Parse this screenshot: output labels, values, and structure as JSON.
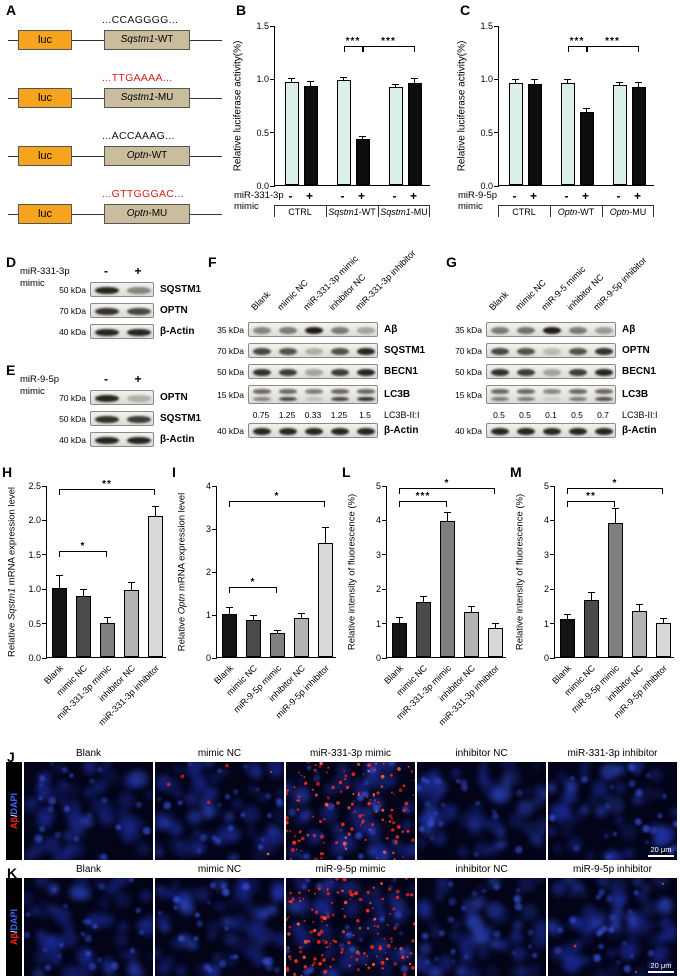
{
  "panelA": {
    "label": "A",
    "luc": "luc",
    "constructs": [
      {
        "seq": "...CCAGGGG...",
        "red": false,
        "gene": "Sqstm1",
        "suffix": "-WT"
      },
      {
        "seq": "...TTGAAAA...",
        "red": true,
        "gene": "Sqstm1",
        "suffix": "-MU"
      },
      {
        "seq": "...ACCAAAG...",
        "red": false,
        "gene": "Optn",
        "suffix": "-WT"
      },
      {
        "seq": "...GTTGGGAC...",
        "red": true,
        "gene": "Optn",
        "suffix": "-MU"
      }
    ]
  },
  "panelB": {
    "label": "B",
    "mimic_line1": "miR-331-3p",
    "mimic_line2": "mimic",
    "signs": [
      "-",
      "+",
      "-",
      "+",
      "-",
      "+"
    ],
    "groups": [
      {
        "italic": "",
        "rest": "CTRL"
      },
      {
        "italic": "Sqstm1",
        "rest": "-WT"
      },
      {
        "italic": "Sqstm1",
        "rest": "-MU"
      }
    ],
    "chart": {
      "type": "bar",
      "ylabel": "Relative luciferase activity(%)",
      "ylim": [
        0,
        1.5
      ],
      "yticks": [
        0,
        0.5,
        1,
        1.5
      ],
      "ytick_labels": [
        "0.0",
        "0.5",
        "1.0",
        "1.5"
      ],
      "values": [
        0.97,
        0.93,
        0.98,
        0.43,
        0.92,
        0.96
      ],
      "errors": [
        0.02,
        0.04,
        0.02,
        0.02,
        0.02,
        0.03
      ],
      "colors": [
        "#d9efe7",
        "#0d0d0d",
        "#d9efe7",
        "#0d0d0d",
        "#d9efe7",
        "#0d0d0d"
      ],
      "sig": [
        {
          "i1": 2,
          "i2": 3,
          "label": "***",
          "y": 1.25
        },
        {
          "i1": 3,
          "i2": 5,
          "label": "***",
          "y": 1.25
        }
      ]
    }
  },
  "panelC": {
    "label": "C",
    "mimic_line1": "miR-9-5p",
    "mimic_line2": "mimic",
    "signs": [
      "-",
      "+",
      "-",
      "+",
      "-",
      "+"
    ],
    "groups": [
      {
        "italic": "",
        "rest": "CTRL"
      },
      {
        "italic": "Optn",
        "rest": "-WT"
      },
      {
        "italic": "Optn",
        "rest": "-MU"
      }
    ],
    "chart": {
      "type": "bar",
      "ylabel": "Relative luciferase activity(%)",
      "ylim": [
        0,
        1.5
      ],
      "yticks": [
        0,
        0.5,
        1,
        1.5
      ],
      "ytick_labels": [
        "0.0",
        "0.5",
        "1.0",
        "1.5"
      ],
      "values": [
        0.96,
        0.95,
        0.96,
        0.68,
        0.94,
        0.92
      ],
      "errors": [
        0.02,
        0.03,
        0.02,
        0.03,
        0.02,
        0.04
      ],
      "colors": [
        "#d9efe7",
        "#0d0d0d",
        "#d9efe7",
        "#0d0d0d",
        "#d9efe7",
        "#0d0d0d"
      ],
      "sig": [
        {
          "i1": 2,
          "i2": 3,
          "label": "***",
          "y": 1.25
        },
        {
          "i1": 3,
          "i2": 5,
          "label": "***",
          "y": 1.25
        }
      ]
    }
  },
  "panelD": {
    "label": "D",
    "title_line1": "miR-331-3p",
    "title_line2": "mimic",
    "signs": [
      "-",
      "+"
    ],
    "rows": [
      {
        "marker": "50 kDa",
        "protein": "SQSTM1",
        "bands": [
          [
            0.9,
            0.45
          ]
        ]
      },
      {
        "marker": "70 kDa",
        "protein": "OPTN",
        "bands": [
          [
            0.85,
            0.75
          ]
        ]
      },
      {
        "marker": "40 kDa",
        "protein": "β-Actin",
        "bands": [
          [
            0.9,
            0.9
          ]
        ]
      }
    ]
  },
  "panelE": {
    "label": "E",
    "title_line1": "miR-9-5p",
    "title_line2": "mimic",
    "signs": [
      "-",
      "+"
    ],
    "rows": [
      {
        "marker": "70 kDa",
        "protein": "OPTN",
        "bands": [
          [
            0.9,
            0.25
          ]
        ]
      },
      {
        "marker": "50 kDa",
        "protein": "SQSTM1",
        "bands": [
          [
            0.85,
            0.8
          ]
        ]
      },
      {
        "marker": "40 kDa",
        "protein": "β-Actin",
        "bands": [
          [
            0.9,
            0.9
          ]
        ]
      }
    ]
  },
  "panelF": {
    "label": "F",
    "lanes": [
      "Blank",
      "mimic NC",
      "miR-331-3p mimic",
      "inhibitor NC",
      "miR-331-3p inhibitor"
    ],
    "rows": [
      {
        "marker": "35 kDa",
        "protein": "Aβ",
        "bands": [
          [
            0.45,
            0.5,
            0.95,
            0.5,
            0.3
          ]
        ]
      },
      {
        "marker": "70 kDa",
        "protein": "SQSTM1",
        "bands": [
          [
            0.75,
            0.7,
            0.25,
            0.7,
            0.9
          ]
        ]
      },
      {
        "marker": "50 kDa",
        "protein": "BECN1",
        "bands": [
          [
            0.85,
            0.8,
            0.3,
            0.8,
            0.9
          ]
        ]
      },
      {
        "marker": "15 kDa",
        "protein": "LC3B",
        "bands": [
          [
            0.6,
            0.6,
            0.5,
            0.6,
            0.6
          ],
          [
            0.45,
            0.75,
            0.15,
            0.75,
            0.85
          ]
        ]
      },
      {
        "ratio_label": "LC3B-II:I",
        "ratios": [
          "0.75",
          "1.25",
          "0.33",
          "1.25",
          "1.5"
        ]
      },
      {
        "marker": "40 kDa",
        "protein": "β-Actin",
        "bands": [
          [
            0.9,
            0.9,
            0.9,
            0.9,
            0.9
          ]
        ]
      }
    ]
  },
  "panelG": {
    "label": "G",
    "lanes": [
      "Blank",
      "mimic NC",
      "miR-9-5 mimic",
      "inhibitor NC",
      "miR-9-5p inhibitor"
    ],
    "rows": [
      {
        "marker": "35 kDa",
        "protein": "Aβ",
        "bands": [
          [
            0.5,
            0.55,
            0.95,
            0.5,
            0.35
          ]
        ]
      },
      {
        "marker": "70 kDa",
        "protein": "OPTN",
        "bands": [
          [
            0.75,
            0.7,
            0.2,
            0.7,
            0.85
          ]
        ]
      },
      {
        "marker": "50 kDa",
        "protein": "BECN1",
        "bands": [
          [
            0.85,
            0.8,
            0.3,
            0.8,
            0.9
          ]
        ]
      },
      {
        "marker": "15 kDa",
        "protein": "LC3B",
        "bands": [
          [
            0.6,
            0.6,
            0.45,
            0.6,
            0.6
          ],
          [
            0.5,
            0.5,
            0.1,
            0.5,
            0.7
          ]
        ]
      },
      {
        "ratio_label": "LC3B-II:I",
        "ratios": [
          "0.5",
          "0.5",
          "0.1",
          "0.5",
          "0.7"
        ]
      },
      {
        "marker": "40 kDa",
        "protein": "β-Actin",
        "bands": [
          [
            0.9,
            0.9,
            0.9,
            0.9,
            0.9
          ]
        ]
      }
    ]
  },
  "panelH": {
    "label": "H",
    "chart": {
      "type": "bar",
      "ylabel_pre": "Relative ",
      "ylabel_italic": "Sqstm1",
      "ylabel_post": " mRNA expression level",
      "ylim": [
        0,
        2.5
      ],
      "yticks": [
        0,
        0.5,
        1,
        1.5,
        2,
        2.5
      ],
      "ytick_labels": [
        "0.0",
        "0.5",
        "1.0",
        "1.5",
        "2.0",
        "2.5"
      ],
      "categories": [
        "Blank",
        "mimic NC",
        "miR-331-3p mimic",
        "inhibitor NC",
        "miR-331-3p inhibitor"
      ],
      "values": [
        1.0,
        0.88,
        0.5,
        0.98,
        2.05
      ],
      "errors": [
        0.18,
        0.1,
        0.06,
        0.1,
        0.13
      ],
      "colors": [
        "#141414",
        "#4a4a4a",
        "#7f7f7f",
        "#b3b3b3",
        "#d9d9d9"
      ],
      "sig": [
        {
          "i1": 0,
          "i2": 2,
          "label": "*",
          "y": 1.45
        },
        {
          "i1": 0,
          "i2": 4,
          "label": "**",
          "y": 2.35
        }
      ]
    }
  },
  "panelI": {
    "label": "I",
    "chart": {
      "type": "bar",
      "ylabel_pre": "Relative ",
      "ylabel_italic": "Optn",
      "ylabel_post": " mRNA expression level",
      "ylim": [
        0,
        4
      ],
      "yticks": [
        0,
        1,
        2,
        3,
        4
      ],
      "ytick_labels": [
        "0",
        "1",
        "2",
        "3",
        "4"
      ],
      "categories": [
        "Blank",
        "mimic NC",
        "miR-9-5p mimic",
        "inhibitor NC",
        "miR-9-5p inhibitor"
      ],
      "values": [
        1.0,
        0.85,
        0.55,
        0.9,
        2.65
      ],
      "errors": [
        0.15,
        0.1,
        0.06,
        0.1,
        0.35
      ],
      "colors": [
        "#141414",
        "#4a4a4a",
        "#7f7f7f",
        "#b3b3b3",
        "#d9d9d9"
      ],
      "sig": [
        {
          "i1": 0,
          "i2": 2,
          "label": "*",
          "y": 1.5
        },
        {
          "i1": 0,
          "i2": 4,
          "label": "*",
          "y": 3.5
        }
      ]
    }
  },
  "panelL": {
    "label": "L",
    "chart": {
      "type": "bar",
      "ylabel_pre": "Relative intensity of fluorescence (%)",
      "ylabel_italic": "",
      "ylabel_post": "",
      "ylim": [
        0,
        5
      ],
      "yticks": [
        0,
        1,
        2,
        3,
        4,
        5
      ],
      "ytick_labels": [
        "0",
        "1",
        "2",
        "3",
        "4",
        "5"
      ],
      "categories": [
        "Blank",
        "mimic NC",
        "miR-331-3p mimic",
        "inhibitor NC",
        "miR-331-3p inhibitor"
      ],
      "values": [
        1.0,
        1.6,
        3.95,
        1.3,
        0.85
      ],
      "errors": [
        0.12,
        0.15,
        0.25,
        0.15,
        0.1
      ],
      "colors": [
        "#141414",
        "#4a4a4a",
        "#7f7f7f",
        "#b3b3b3",
        "#d9d9d9"
      ],
      "sig": [
        {
          "i1": 0,
          "i2": 2,
          "label": "***",
          "y": 4.35
        },
        {
          "i1": 0,
          "i2": 4,
          "label": "*",
          "y": 4.75
        }
      ]
    }
  },
  "panelM": {
    "label": "M",
    "chart": {
      "type": "bar",
      "ylabel_pre": "Relative intensity of fluorescence (%)",
      "ylabel_italic": "",
      "ylabel_post": "",
      "ylim": [
        0,
        5
      ],
      "yticks": [
        0,
        1,
        2,
        3,
        4,
        5
      ],
      "ytick_labels": [
        "0",
        "1",
        "2",
        "3",
        "4",
        "5"
      ],
      "categories": [
        "Blank",
        "mimic NC",
        "miR-9-5p mimic",
        "inhibitor NC",
        "miR-9-5p inhibitor"
      ],
      "values": [
        1.1,
        1.65,
        3.9,
        1.35,
        1.0
      ],
      "errors": [
        0.12,
        0.2,
        0.4,
        0.15,
        0.1
      ],
      "colors": [
        "#141414",
        "#4a4a4a",
        "#7f7f7f",
        "#b3b3b3",
        "#d9d9d9"
      ],
      "sig": [
        {
          "i1": 0,
          "i2": 2,
          "label": "**",
          "y": 4.35
        },
        {
          "i1": 0,
          "i2": 4,
          "label": "*",
          "y": 4.75
        }
      ]
    }
  },
  "panelJ": {
    "label": "J",
    "columns": [
      "Blank",
      "mimic NC",
      "miR-331-3p mimic",
      "inhibitor NC",
      "miR-331-3p inhibitor"
    ],
    "row_label": {
      "red": "Aβ",
      "sep": "/",
      "blue": "DAPI"
    },
    "red_dots": [
      0,
      6,
      140,
      0,
      0
    ],
    "scale_bar": "20 μm"
  },
  "panelK": {
    "label": "K",
    "columns": [
      "Blank",
      "mimic NC",
      "miR-9-5p mimic",
      "inhibitor NC",
      "miR-9-5p inhibitor"
    ],
    "row_label": {
      "red": "Aβ",
      "sep": "/",
      "blue": "DAPI"
    },
    "red_dots": [
      0,
      0,
      150,
      0,
      3
    ],
    "scale_bar": "20 μm"
  }
}
